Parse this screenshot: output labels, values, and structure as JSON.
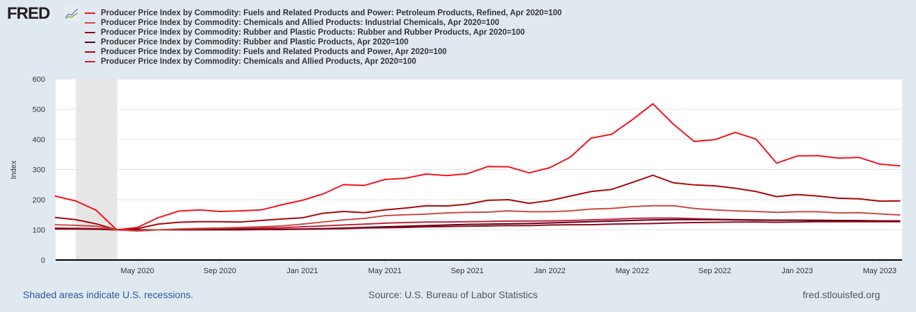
{
  "logo": "FRED",
  "chart_data": {
    "type": "line",
    "ylabel": "Index",
    "ylim": [
      0,
      600
    ],
    "yticks": [
      0,
      100,
      200,
      300,
      400,
      500,
      600
    ],
    "x_start": "2020-01",
    "x_end": "2023-06",
    "frequency": "monthly",
    "xticks": [
      "May 2020",
      "Sep 2020",
      "Jan 2021",
      "May 2021",
      "Sep 2021",
      "Jan 2022",
      "May 2022",
      "Sep 2022",
      "Jan 2023",
      "May 2023"
    ],
    "xtick_months": [
      4,
      8,
      12,
      16,
      20,
      24,
      28,
      32,
      36,
      40
    ],
    "recession": {
      "start_month": 1,
      "end_month": 3
    },
    "grid": true,
    "legend_position": "top",
    "series": [
      {
        "name": "Producer Price Index by Commodity: Fuels and Related Products and Power: Petroleum Products, Refined, Apr 2020=100",
        "color": "#f5121f",
        "values": [
          212,
          196,
          165,
          100,
          108,
          140,
          162,
          166,
          161,
          163,
          166,
          183,
          198,
          219,
          250,
          247,
          267,
          271,
          285,
          280,
          286,
          310,
          309,
          289,
          306,
          341,
          404,
          417,
          465,
          518,
          450,
          393,
          399,
          423,
          401,
          321,
          345,
          346,
          338,
          340,
          318,
          312
        ]
      },
      {
        "name": "Producer Price Index by Commodity: Chemicals and Allied Products: Industrial Chemicals, Apr 2020=100",
        "color": "#c94a44",
        "values": [
          117,
          115,
          112,
          100,
          96,
          100,
          103,
          105,
          106,
          108,
          110,
          113,
          119,
          126,
          133,
          138,
          147,
          150,
          152,
          156,
          158,
          159,
          163,
          160,
          160,
          163,
          169,
          171,
          177,
          180,
          180,
          171,
          166,
          163,
          161,
          158,
          160,
          160,
          156,
          157,
          153,
          149
        ]
      },
      {
        "name": "Producer Price Index by Commodity: Rubber and Plastic Products: Rubber and Rubber Products, Apr 2020=100",
        "color": "#8b0a1e",
        "values": [
          104,
          104,
          103,
          100,
          100,
          100,
          100,
          100,
          100,
          100,
          101,
          101,
          102,
          103,
          104,
          106,
          107,
          108,
          110,
          111,
          112,
          113,
          114,
          114,
          116,
          117,
          117,
          119,
          120,
          121,
          123,
          124,
          125,
          126,
          126,
          125,
          126,
          127,
          127,
          127,
          127,
          127
        ]
      },
      {
        "name": "Producer Price Index by Commodity: Rubber and Plastic Products, Apr 2020=100",
        "color": "#5c0014",
        "values": [
          103,
          103,
          102,
          100,
          100,
          100,
          101,
          101,
          101,
          102,
          102,
          102,
          103,
          104,
          106,
          108,
          110,
          112,
          114,
          116,
          118,
          119,
          120,
          121,
          123,
          125,
          127,
          129,
          131,
          133,
          134,
          134,
          134,
          133,
          132,
          132,
          132,
          131,
          131,
          130,
          129,
          129
        ]
      },
      {
        "name": "Producer Price Index by Commodity: Fuels and Related Products and Power, Apr 2020=100",
        "color": "#a8070c",
        "values": [
          141,
          134,
          120,
          100,
          104,
          119,
          125,
          127,
          127,
          126,
          131,
          136,
          140,
          155,
          161,
          157,
          166,
          172,
          180,
          179,
          185,
          198,
          200,
          188,
          197,
          212,
          227,
          234,
          257,
          281,
          256,
          249,
          246,
          238,
          227,
          210,
          217,
          212,
          205,
          203,
          195,
          196
        ]
      },
      {
        "name": "Producer Price Index by Commodity: Chemicals and Allied Products, Apr 2020=100",
        "color": "#c4203e",
        "values": [
          106,
          105,
          104,
          100,
          99,
          100,
          102,
          103,
          104,
          105,
          106,
          107,
          110,
          113,
          116,
          119,
          122,
          124,
          126,
          126,
          127,
          128,
          129,
          129,
          130,
          131,
          133,
          135,
          138,
          139,
          139,
          137,
          135,
          134,
          133,
          132,
          132,
          132,
          131,
          131,
          130,
          130
        ]
      }
    ]
  },
  "footer": {
    "recession_note": "Shaded areas indicate U.S. recessions.",
    "source": "Source: U.S. Bureau of Labor Statistics",
    "site": "fred.stlouisfed.org"
  }
}
